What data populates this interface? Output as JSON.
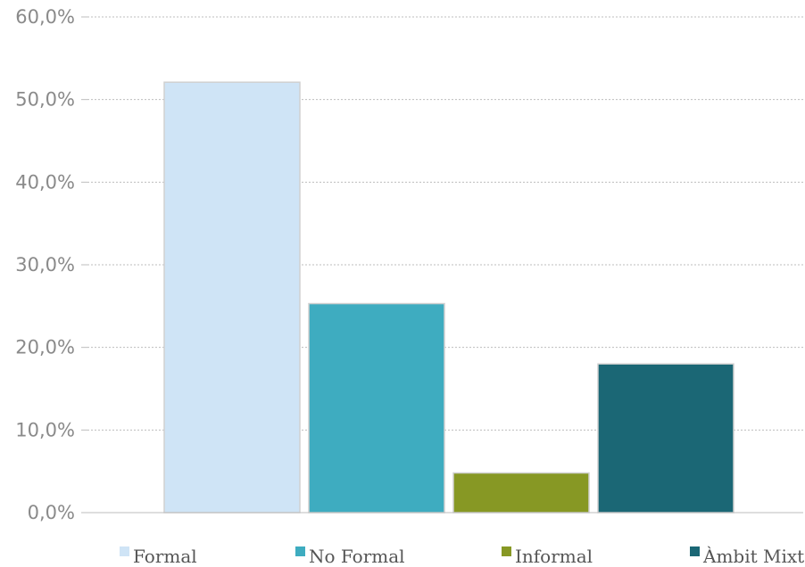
{
  "chart_data": {
    "type": "bar",
    "ylim": [
      0,
      60
    ],
    "y_ticks": [
      0,
      10,
      20,
      30,
      40,
      50,
      60
    ],
    "y_tick_labels": [
      "0,0%",
      "10,0%",
      "20,0%",
      "30,0%",
      "40,0%",
      "50,0%",
      "60,0%"
    ],
    "grid": true,
    "legend_position": "bottom",
    "series": [
      {
        "name": "Formal",
        "values": [
          52.1
        ],
        "color": "#cfe4f6"
      },
      {
        "name": "No Formal",
        "values": [
          25.3
        ],
        "color": "#3eacc0"
      },
      {
        "name": "Informal",
        "values": [
          4.8
        ],
        "color": "#879824"
      },
      {
        "name": "Àmbit Mixt",
        "values": [
          18.0
        ],
        "color": "#1b6775"
      }
    ]
  }
}
